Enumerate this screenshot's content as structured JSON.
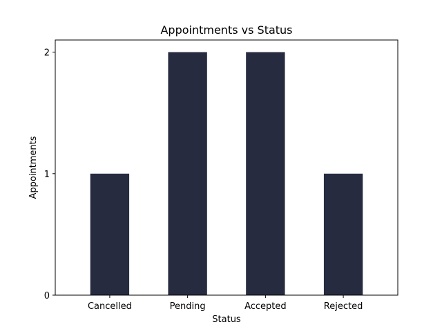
{
  "chart_data": {
    "type": "bar",
    "title": "Appointments vs Status",
    "xlabel": "Status",
    "ylabel": "Appointments",
    "categories": [
      "Cancelled",
      "Pending",
      "Accepted",
      "Rejected"
    ],
    "values": [
      1,
      2,
      2,
      1
    ],
    "ylim": [
      0,
      2.1
    ],
    "yticks": [
      0,
      1,
      2
    ],
    "bar_color": "#262b40",
    "grid": false,
    "legend": "none"
  }
}
